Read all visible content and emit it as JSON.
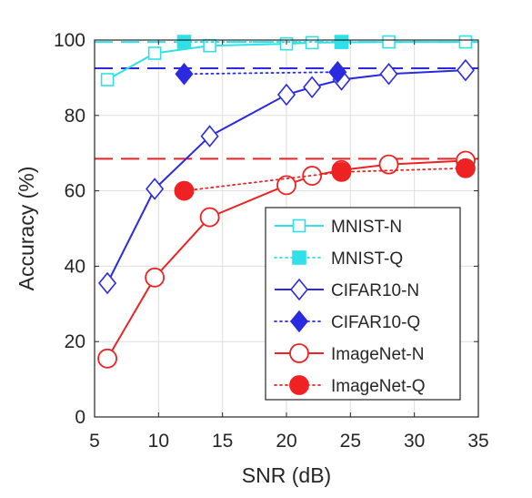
{
  "chart_data": {
    "type": "line",
    "xlabel": "SNR (dB)",
    "ylabel": "Accuracy (%)",
    "xlim": [
      5,
      35
    ],
    "ylim": [
      0,
      100
    ],
    "xticks": [
      "5",
      "10",
      "15",
      "20",
      "25",
      "30",
      "35"
    ],
    "yticks": [
      "0",
      "20",
      "40",
      "60",
      "80",
      "100"
    ],
    "grid": true,
    "legend_position": "bottom-right",
    "reference_lines": [
      {
        "y": 99.5,
        "color": "#2fe0e8",
        "style": "dashed"
      },
      {
        "y": 92.5,
        "color": "#2a2ae0",
        "style": "dashed"
      },
      {
        "y": 68.5,
        "color": "#ee2222",
        "style": "dashed"
      }
    ],
    "series": [
      {
        "name": "MNIST-N",
        "color": "#2fe0e8",
        "line": "solid",
        "marker": "square-open",
        "x": [
          6,
          9.7,
          14,
          20,
          22,
          24.3,
          28,
          34
        ],
        "y": [
          89.5,
          96.5,
          98.5,
          99,
          99.3,
          99.4,
          99.5,
          99.5
        ]
      },
      {
        "name": "MNIST-Q",
        "color": "#2fe0e8",
        "line": "dotted",
        "marker": "square-filled",
        "x": [
          12,
          24.3
        ],
        "y": [
          99.5,
          99.5
        ]
      },
      {
        "name": "CIFAR10-N",
        "color": "#2a2ae0",
        "line": "solid",
        "marker": "diamond-open",
        "x": [
          6,
          9.7,
          14,
          20,
          22,
          24.3,
          28,
          34
        ],
        "y": [
          35.5,
          60.5,
          74.5,
          85.5,
          87.5,
          89.5,
          91,
          92
        ]
      },
      {
        "name": "CIFAR10-Q",
        "color": "#2a2ae0",
        "line": "dotted",
        "marker": "diamond-filled",
        "x": [
          12,
          24
        ],
        "y": [
          91,
          91.5
        ]
      },
      {
        "name": "ImageNet-N",
        "color": "#ee2222",
        "line": "solid",
        "marker": "circle-open",
        "x": [
          6,
          9.7,
          14,
          20,
          22,
          24.3,
          28,
          34
        ],
        "y": [
          15.5,
          37,
          53,
          61.5,
          64,
          65.5,
          67,
          68
        ]
      },
      {
        "name": "ImageNet-Q",
        "color": "#ee2222",
        "line": "dotted",
        "marker": "circle-filled",
        "x": [
          12,
          24.3,
          34
        ],
        "y": [
          60,
          65,
          66
        ]
      }
    ]
  }
}
